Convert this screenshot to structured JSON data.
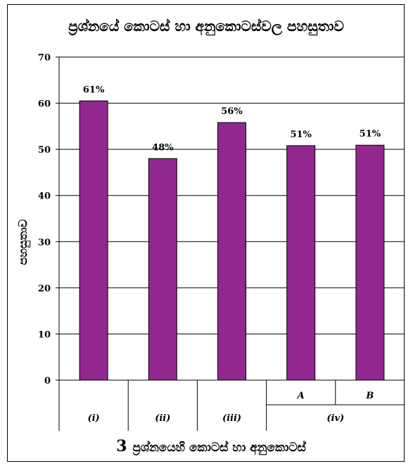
{
  "chart_data": {
    "type": "bar",
    "title": "ප්‍රශ්නයේ කොටස් හා අනුකොටස්වල පහසුතාව",
    "ylabel": "පහසුතාව",
    "xlabel_number": "3",
    "xlabel_text": "ප්‍රශ්නයෙහි කොටස් හා අනුකොටස්",
    "ylim": [
      0,
      70
    ],
    "yticks": [
      0,
      10,
      20,
      30,
      40,
      50,
      60,
      70
    ],
    "grid": true,
    "categories": [
      "(i)",
      "(ii)",
      "(iii)",
      "A",
      "B"
    ],
    "group_label": "(iv)",
    "values": [
      60.5,
      48,
      55.8,
      50.8,
      50.9
    ],
    "data_labels": [
      "61%",
      "48%",
      "56%",
      "51%",
      "51%"
    ],
    "bar_color": "#92278f"
  }
}
